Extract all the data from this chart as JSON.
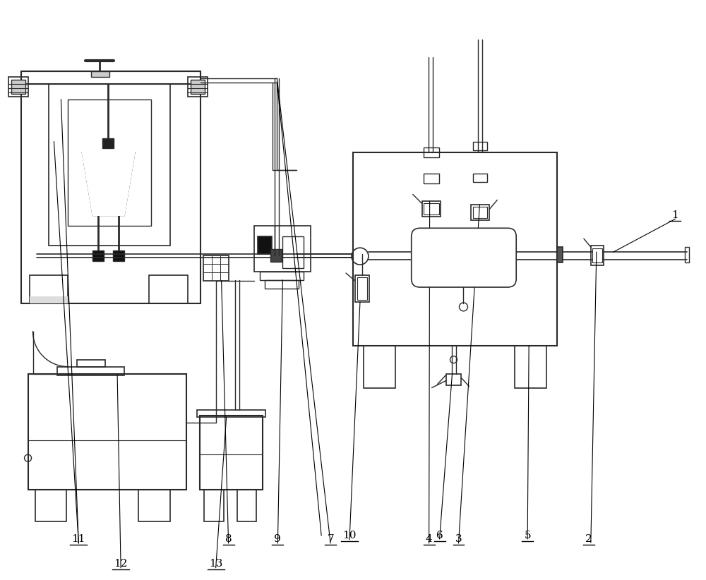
{
  "bg_color": "#ffffff",
  "lc": "#2a2a2a",
  "lw": 1.0,
  "fig_w": 10.0,
  "fig_h": 8.22,
  "dpi": 100
}
